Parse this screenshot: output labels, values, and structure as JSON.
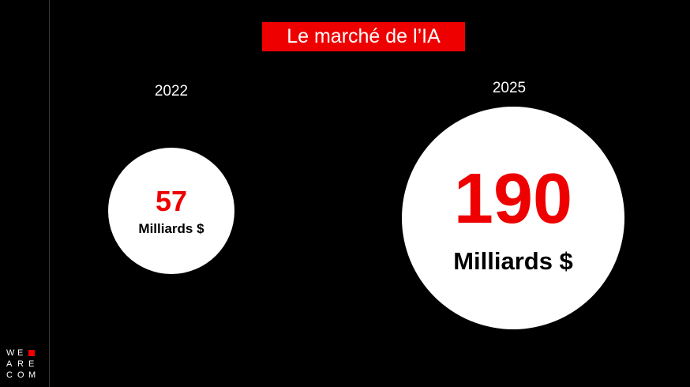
{
  "slide": {
    "title": "Le marché de l’IA",
    "accent_color": "#ee0000",
    "background_color": "#000000"
  },
  "chart_data": {
    "type": "bubble",
    "title": "Le marché de l’IA",
    "categories": [
      "2022",
      "2025"
    ],
    "values": [
      57,
      190
    ],
    "unit": "Milliards $",
    "value_color": "#ee0000",
    "bubble_color": "#ffffff"
  },
  "logo": {
    "lines": [
      "WE",
      "ARE",
      "COM"
    ],
    "square_color": "#ee0000"
  }
}
